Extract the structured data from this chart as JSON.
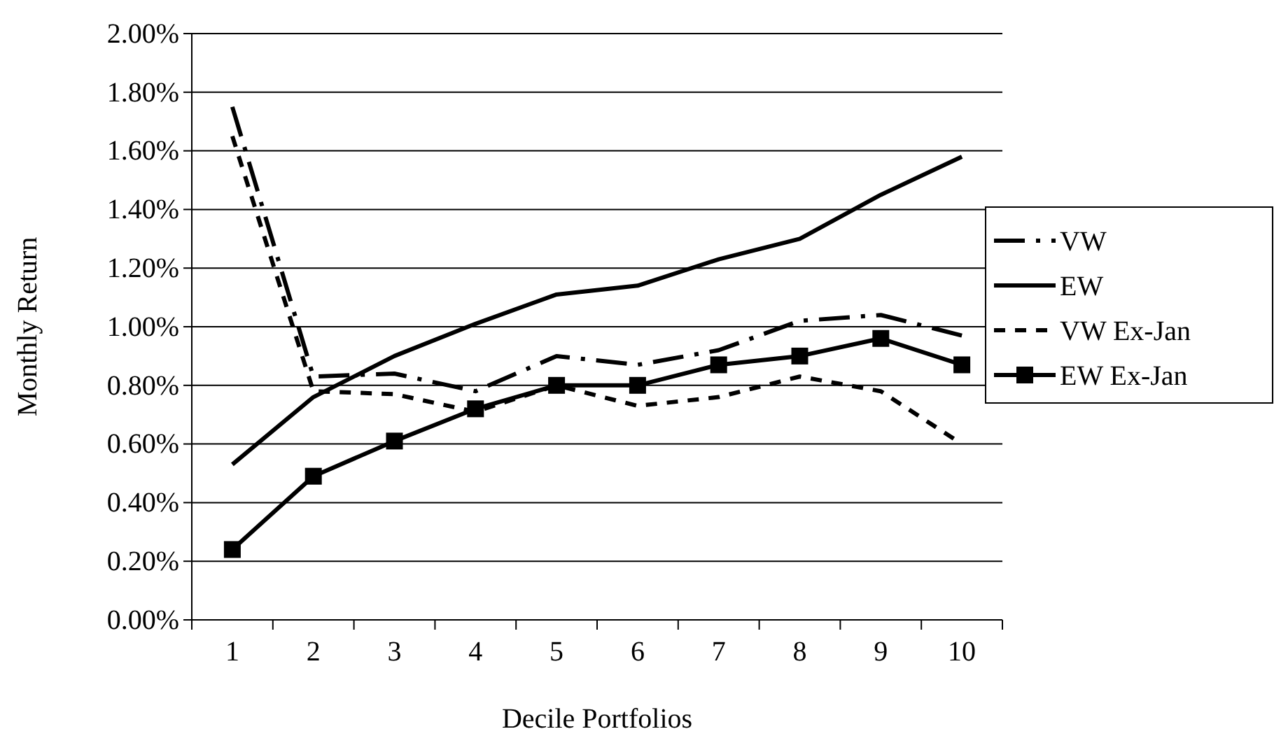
{
  "chart_data": {
    "type": "line",
    "xlabel": "Decile Portfolios",
    "ylabel": "Monthly Return",
    "categories": [
      "1",
      "2",
      "3",
      "4",
      "5",
      "6",
      "7",
      "8",
      "9",
      "10"
    ],
    "series": [
      {
        "name": "VW",
        "color": "#000000",
        "line_style": "dashed",
        "marker": "none",
        "values": [
          1.75,
          0.83,
          0.84,
          0.78,
          0.9,
          0.87,
          0.92,
          1.02,
          1.04,
          0.97
        ]
      },
      {
        "name": "EW",
        "color": "#000000",
        "line_style": "solid",
        "marker": "none",
        "values": [
          0.53,
          0.76,
          0.9,
          1.01,
          1.11,
          1.14,
          1.23,
          1.3,
          1.45,
          1.58
        ]
      },
      {
        "name": "VW Ex-Jan",
        "color": "#000000",
        "line_style": "dotted",
        "marker": "none",
        "values": [
          1.65,
          0.78,
          0.77,
          0.71,
          0.8,
          0.73,
          0.76,
          0.83,
          0.78,
          0.6
        ]
      },
      {
        "name": "EW Ex-Jan",
        "color": "#000000",
        "line_style": "solid",
        "marker": "square",
        "values": [
          0.24,
          0.49,
          0.61,
          0.72,
          0.8,
          0.8,
          0.87,
          0.9,
          0.96,
          0.87
        ]
      }
    ],
    "ylim": [
      0,
      2
    ],
    "yticks": [
      {
        "value": 0,
        "label": "0.00%"
      },
      {
        "value": 0.2,
        "label": "0.20%"
      },
      {
        "value": 0.4,
        "label": "0.40%"
      },
      {
        "value": 0.6,
        "label": "0.60%"
      },
      {
        "value": 0.8,
        "label": "0.80%"
      },
      {
        "value": 1,
        "label": "1.00%"
      },
      {
        "value": 1.2,
        "label": "1.20%"
      },
      {
        "value": 1.4,
        "label": "1.40%"
      },
      {
        "value": 1.6,
        "label": "1.60%"
      },
      {
        "value": 1.8,
        "label": "1.80%"
      },
      {
        "value": 2,
        "label": "2.00%"
      }
    ],
    "grid": "y",
    "legend": "right"
  }
}
